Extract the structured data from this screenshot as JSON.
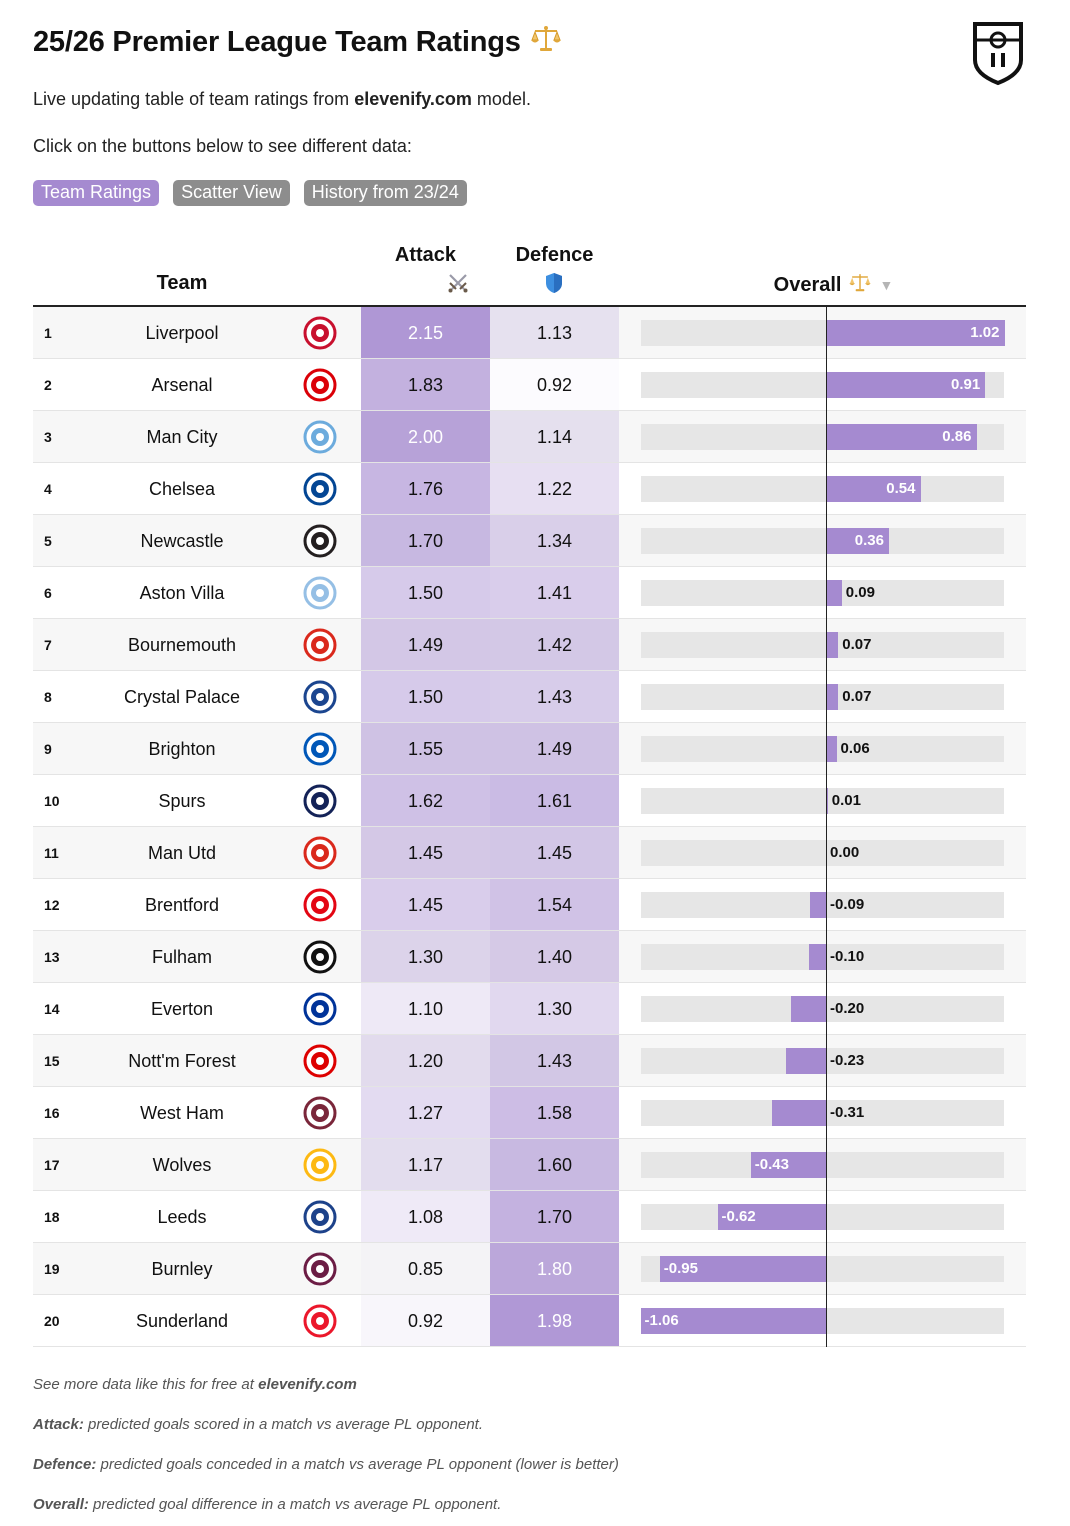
{
  "header": {
    "title": "25/26 Premier League Team Ratings",
    "title_icon": "scales-icon",
    "subtitle_pre": "Live updating table of team ratings from ",
    "subtitle_brand": "elevenify.com",
    "subtitle_post": " model.",
    "instructions": "Click on the buttons below to see different data:"
  },
  "buttons": [
    {
      "label": "Team Ratings",
      "active": true
    },
    {
      "label": "Scatter View",
      "active": false
    },
    {
      "label": "History from 23/24",
      "active": false
    }
  ],
  "table": {
    "columns": {
      "team": "Team",
      "attack": "Attack",
      "defence": "Defence",
      "overall": "Overall",
      "sort_indicator": "▼"
    },
    "rows": [
      {
        "rank": "1",
        "team": "Liverpool",
        "attack": "2.15",
        "defence": "1.13",
        "overall": "1.02",
        "overall_value": 1.02,
        "crest_color": "#c8102e"
      },
      {
        "rank": "2",
        "team": "Arsenal",
        "attack": "1.83",
        "defence": "0.92",
        "overall": "0.91",
        "overall_value": 0.91,
        "crest_color": "#db0007"
      },
      {
        "rank": "3",
        "team": "Man City",
        "attack": "2.00",
        "defence": "1.14",
        "overall": "0.86",
        "overall_value": 0.86,
        "crest_color": "#6cabdd"
      },
      {
        "rank": "4",
        "team": "Chelsea",
        "attack": "1.76",
        "defence": "1.22",
        "overall": "0.54",
        "overall_value": 0.54,
        "crest_color": "#034694"
      },
      {
        "rank": "5",
        "team": "Newcastle",
        "attack": "1.70",
        "defence": "1.34",
        "overall": "0.36",
        "overall_value": 0.36,
        "crest_color": "#241f20"
      },
      {
        "rank": "6",
        "team": "Aston Villa",
        "attack": "1.50",
        "defence": "1.41",
        "overall": "0.09",
        "overall_value": 0.09,
        "crest_color": "#95bfe5"
      },
      {
        "rank": "7",
        "team": "Bournemouth",
        "attack": "1.49",
        "defence": "1.42",
        "overall": "0.07",
        "overall_value": 0.07,
        "crest_color": "#da291c"
      },
      {
        "rank": "8",
        "team": "Crystal Palace",
        "attack": "1.50",
        "defence": "1.43",
        "overall": "0.07",
        "overall_value": 0.07,
        "crest_color": "#1b458f"
      },
      {
        "rank": "9",
        "team": "Brighton",
        "attack": "1.55",
        "defence": "1.49",
        "overall": "0.06",
        "overall_value": 0.06,
        "crest_color": "#0057b8"
      },
      {
        "rank": "10",
        "team": "Spurs",
        "attack": "1.62",
        "defence": "1.61",
        "overall": "0.01",
        "overall_value": 0.01,
        "crest_color": "#132257"
      },
      {
        "rank": "11",
        "team": "Man Utd",
        "attack": "1.45",
        "defence": "1.45",
        "overall": "0.00",
        "overall_value": 0.0,
        "crest_color": "#da291c"
      },
      {
        "rank": "12",
        "team": "Brentford",
        "attack": "1.45",
        "defence": "1.54",
        "overall": "-0.09",
        "overall_value": -0.09,
        "crest_color": "#e30613"
      },
      {
        "rank": "13",
        "team": "Fulham",
        "attack": "1.30",
        "defence": "1.40",
        "overall": "-0.10",
        "overall_value": -0.1,
        "crest_color": "#111111"
      },
      {
        "rank": "14",
        "team": "Everton",
        "attack": "1.10",
        "defence": "1.30",
        "overall": "-0.20",
        "overall_value": -0.2,
        "crest_color": "#003399"
      },
      {
        "rank": "15",
        "team": "Nott'm Forest",
        "attack": "1.20",
        "defence": "1.43",
        "overall": "-0.23",
        "overall_value": -0.23,
        "crest_color": "#dd0000"
      },
      {
        "rank": "16",
        "team": "West Ham",
        "attack": "1.27",
        "defence": "1.58",
        "overall": "-0.31",
        "overall_value": -0.31,
        "crest_color": "#7a263a"
      },
      {
        "rank": "17",
        "team": "Wolves",
        "attack": "1.17",
        "defence": "1.60",
        "overall": "-0.43",
        "overall_value": -0.43,
        "crest_color": "#fdb913"
      },
      {
        "rank": "18",
        "team": "Leeds",
        "attack": "1.08",
        "defence": "1.70",
        "overall": "-0.62",
        "overall_value": -0.62,
        "crest_color": "#1d428a"
      },
      {
        "rank": "19",
        "team": "Burnley",
        "attack": "0.85",
        "defence": "1.80",
        "overall": "-0.95",
        "overall_value": -0.95,
        "crest_color": "#6c1d45"
      },
      {
        "rank": "20",
        "team": "Sunderland",
        "attack": "0.92",
        "defence": "1.98",
        "overall": "-1.06",
        "overall_value": -1.06,
        "crest_color": "#eb172b"
      }
    ]
  },
  "footer": {
    "line1_pre": "See more data like this for free at ",
    "line1_brand": "elevenify.com",
    "attack_label": "Attack:",
    "attack_desc": " predicted goals scored in a match vs average PL opponent.",
    "defence_label": "Defence:",
    "defence_desc": " predicted goals conceded in a match vs average PL opponent (lower is better)",
    "overall_label": "Overall:",
    "overall_desc": " predicted goal difference in a match vs average PL opponent."
  },
  "colors": {
    "accent": "#a58ad0",
    "inactive_button": "#8d8d8d",
    "bar_track": "#e6e6e6"
  }
}
